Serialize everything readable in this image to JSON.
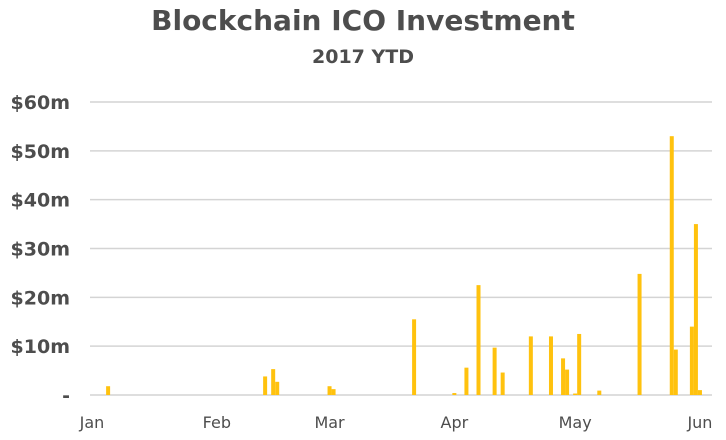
{
  "chart_data": {
    "type": "bar",
    "title": "Blockchain ICO Investment",
    "subtitle": "2017 YTD",
    "xlabel": "",
    "ylabel": "",
    "ylim": [
      0,
      60
    ],
    "y_unit": "$m",
    "y_ticks": [
      {
        "value": 0,
        "label": "-"
      },
      {
        "value": 10,
        "label": "$10m"
      },
      {
        "value": 20,
        "label": "$20m"
      },
      {
        "value": 30,
        "label": "$30m"
      },
      {
        "value": 40,
        "label": "$40m"
      },
      {
        "value": 50,
        "label": "$50m"
      },
      {
        "value": 60,
        "label": "$60m"
      }
    ],
    "x_ticks": [
      {
        "date": "2017-01-01",
        "label": "Jan"
      },
      {
        "date": "2017-02-01",
        "label": "Feb"
      },
      {
        "date": "2017-03-01",
        "label": "Mar"
      },
      {
        "date": "2017-04-01",
        "label": "Apr"
      },
      {
        "date": "2017-05-01",
        "label": "May"
      },
      {
        "date": "2017-06-01",
        "label": "Jun"
      }
    ],
    "xlim": [
      "2017-01-01",
      "2017-06-03"
    ],
    "grid": true,
    "bar_color": "#FFC20E",
    "grid_color": "#d4d4d4",
    "series": [
      {
        "points": [
          {
            "x": "2017-01-05",
            "y": 1.8
          },
          {
            "x": "2017-02-13",
            "y": 3.8
          },
          {
            "x": "2017-02-15",
            "y": 5.3
          },
          {
            "x": "2017-02-16",
            "y": 2.7
          },
          {
            "x": "2017-03-01",
            "y": 1.8
          },
          {
            "x": "2017-03-02",
            "y": 1.2
          },
          {
            "x": "2017-03-22",
            "y": 15.5
          },
          {
            "x": "2017-04-01",
            "y": 0.4
          },
          {
            "x": "2017-04-04",
            "y": 5.6
          },
          {
            "x": "2017-04-07",
            "y": 22.5
          },
          {
            "x": "2017-04-11",
            "y": 9.7
          },
          {
            "x": "2017-04-13",
            "y": 4.6
          },
          {
            "x": "2017-04-20",
            "y": 12.0
          },
          {
            "x": "2017-04-25",
            "y": 12.0
          },
          {
            "x": "2017-04-28",
            "y": 7.5
          },
          {
            "x": "2017-04-29",
            "y": 5.2
          },
          {
            "x": "2017-05-01",
            "y": 0.3
          },
          {
            "x": "2017-05-02",
            "y": 12.5
          },
          {
            "x": "2017-05-07",
            "y": 0.9
          },
          {
            "x": "2017-05-17",
            "y": 24.8
          },
          {
            "x": "2017-05-25",
            "y": 53.0
          },
          {
            "x": "2017-05-26",
            "y": 9.3
          },
          {
            "x": "2017-05-30",
            "y": 14.0
          },
          {
            "x": "2017-05-31",
            "y": 35.0
          },
          {
            "x": "2017-06-01",
            "y": 1.0
          }
        ]
      }
    ]
  }
}
